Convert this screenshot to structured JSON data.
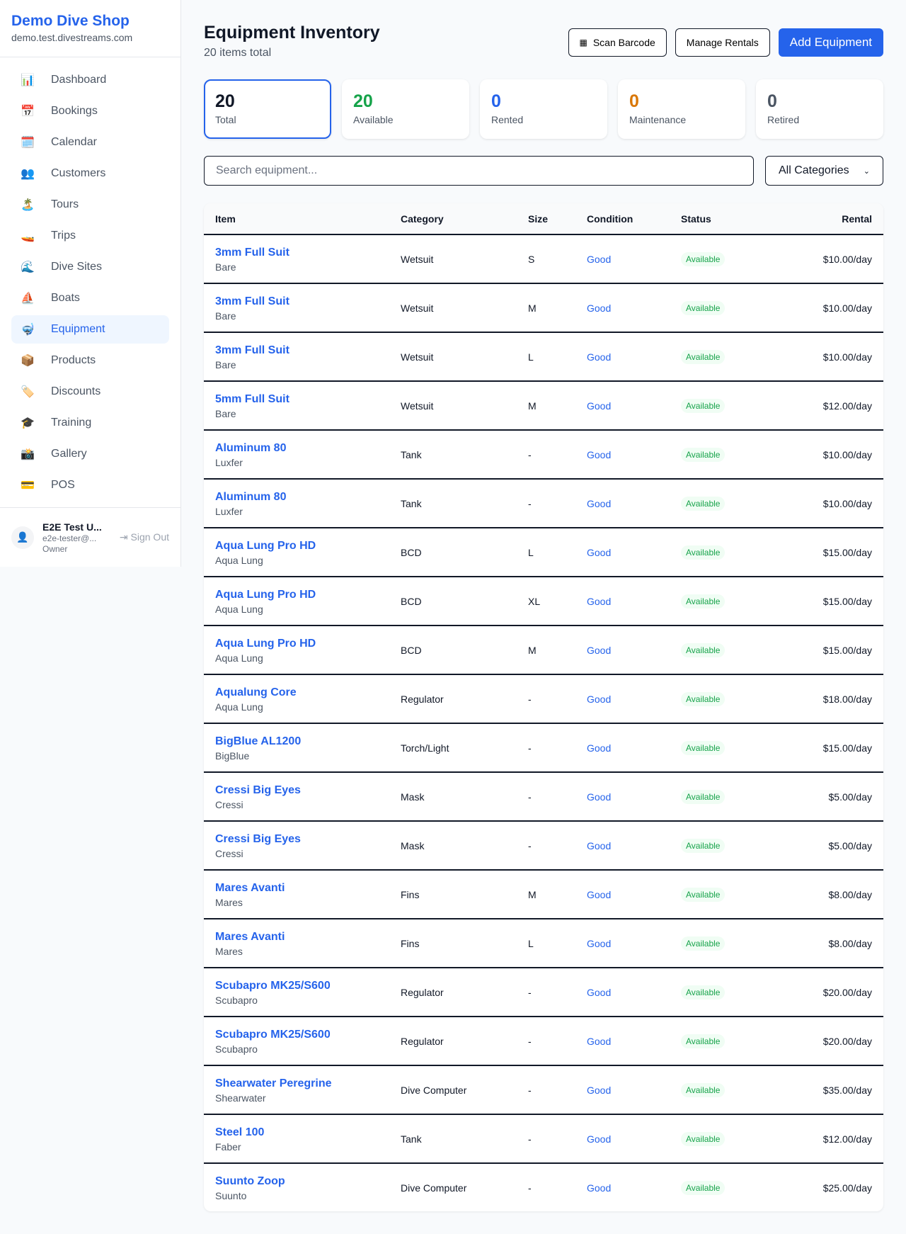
{
  "brand": {
    "name": "Demo Dive Shop",
    "domain": "demo.test.divestreams.com"
  },
  "nav": [
    {
      "label": "Dashboard",
      "icon": "📊"
    },
    {
      "label": "Bookings",
      "icon": "📅"
    },
    {
      "label": "Calendar",
      "icon": "🗓️"
    },
    {
      "label": "Customers",
      "icon": "👥"
    },
    {
      "label": "Tours",
      "icon": "🏝️"
    },
    {
      "label": "Trips",
      "icon": "🚤"
    },
    {
      "label": "Dive Sites",
      "icon": "🌊"
    },
    {
      "label": "Boats",
      "icon": "⛵"
    },
    {
      "label": "Equipment",
      "icon": "🤿",
      "active": true
    },
    {
      "label": "Products",
      "icon": "📦"
    },
    {
      "label": "Discounts",
      "icon": "🏷️"
    },
    {
      "label": "Training",
      "icon": "🎓"
    },
    {
      "label": "Gallery",
      "icon": "📸"
    },
    {
      "label": "POS",
      "icon": "💳"
    }
  ],
  "user": {
    "name": "E2E Test U...",
    "email": "e2e-tester@...",
    "role": "Owner",
    "sign_out": "Sign Out"
  },
  "header": {
    "title": "Equipment Inventory",
    "subtitle": "20 items total",
    "scan": "Scan Barcode",
    "manage": "Manage Rentals",
    "add": "Add Equipment"
  },
  "stats": [
    {
      "value": "20",
      "label": "Total",
      "color": "#111827"
    },
    {
      "value": "20",
      "label": "Available",
      "color": "#16a34a"
    },
    {
      "value": "0",
      "label": "Rented",
      "color": "#2563eb"
    },
    {
      "value": "0",
      "label": "Maintenance",
      "color": "#d97706"
    },
    {
      "value": "0",
      "label": "Retired",
      "color": "#4b5563"
    }
  ],
  "filters": {
    "search_placeholder": "Search equipment...",
    "category": "All Categories"
  },
  "table": {
    "columns": [
      "Item",
      "Category",
      "Size",
      "Condition",
      "Status",
      "Rental"
    ],
    "rows": [
      [
        "3mm Full Suit",
        "Bare",
        "Wetsuit",
        "S",
        "Good",
        "Available",
        "$10.00/day"
      ],
      [
        "3mm Full Suit",
        "Bare",
        "Wetsuit",
        "M",
        "Good",
        "Available",
        "$10.00/day"
      ],
      [
        "3mm Full Suit",
        "Bare",
        "Wetsuit",
        "L",
        "Good",
        "Available",
        "$10.00/day"
      ],
      [
        "5mm Full Suit",
        "Bare",
        "Wetsuit",
        "M",
        "Good",
        "Available",
        "$12.00/day"
      ],
      [
        "Aluminum 80",
        "Luxfer",
        "Tank",
        "-",
        "Good",
        "Available",
        "$10.00/day"
      ],
      [
        "Aluminum 80",
        "Luxfer",
        "Tank",
        "-",
        "Good",
        "Available",
        "$10.00/day"
      ],
      [
        "Aqua Lung Pro HD",
        "Aqua Lung",
        "BCD",
        "L",
        "Good",
        "Available",
        "$15.00/day"
      ],
      [
        "Aqua Lung Pro HD",
        "Aqua Lung",
        "BCD",
        "XL",
        "Good",
        "Available",
        "$15.00/day"
      ],
      [
        "Aqua Lung Pro HD",
        "Aqua Lung",
        "BCD",
        "M",
        "Good",
        "Available",
        "$15.00/day"
      ],
      [
        "Aqualung Core",
        "Aqua Lung",
        "Regulator",
        "-",
        "Good",
        "Available",
        "$18.00/day"
      ],
      [
        "BigBlue AL1200",
        "BigBlue",
        "Torch/Light",
        "-",
        "Good",
        "Available",
        "$15.00/day"
      ],
      [
        "Cressi Big Eyes",
        "Cressi",
        "Mask",
        "-",
        "Good",
        "Available",
        "$5.00/day"
      ],
      [
        "Cressi Big Eyes",
        "Cressi",
        "Mask",
        "-",
        "Good",
        "Available",
        "$5.00/day"
      ],
      [
        "Mares Avanti",
        "Mares",
        "Fins",
        "M",
        "Good",
        "Available",
        "$8.00/day"
      ],
      [
        "Mares Avanti",
        "Mares",
        "Fins",
        "L",
        "Good",
        "Available",
        "$8.00/day"
      ],
      [
        "Scubapro MK25/S600",
        "Scubapro",
        "Regulator",
        "-",
        "Good",
        "Available",
        "$20.00/day"
      ],
      [
        "Scubapro MK25/S600",
        "Scubapro",
        "Regulator",
        "-",
        "Good",
        "Available",
        "$20.00/day"
      ],
      [
        "Shearwater Peregrine",
        "Shearwater",
        "Dive Computer",
        "-",
        "Good",
        "Available",
        "$35.00/day"
      ],
      [
        "Steel 100",
        "Faber",
        "Tank",
        "-",
        "Good",
        "Available",
        "$12.00/day"
      ],
      [
        "Suunto Zoop",
        "Suunto",
        "Dive Computer",
        "-",
        "Good",
        "Available",
        "$25.00/day"
      ]
    ]
  }
}
